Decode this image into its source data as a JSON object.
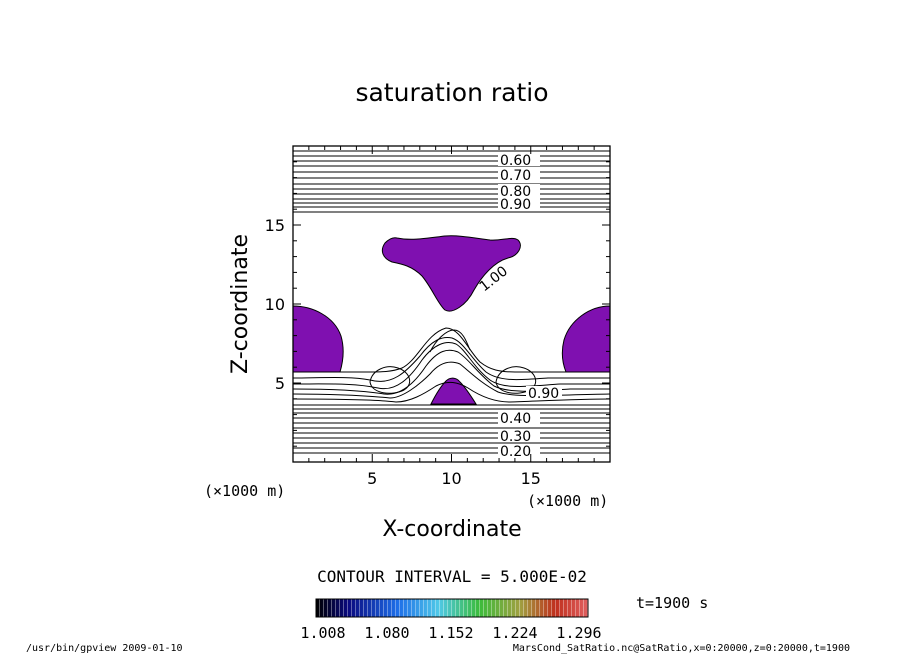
{
  "chart_data": {
    "type": "contour",
    "title": "saturation ratio",
    "xlabel": "X-coordinate",
    "ylabel": "Z-coordinate",
    "x_unit": "(×1000 m)",
    "y_unit": "(×1000 m)",
    "xlim": [
      0,
      20
    ],
    "ylim": [
      0,
      20
    ],
    "x_ticks": [
      "5",
      "10",
      "15"
    ],
    "y_ticks": [
      "5",
      "10",
      "15"
    ],
    "contour_interval_text": "CONTOUR INTERVAL = 5.000E-02",
    "time_label": "t=1900 s",
    "contour_labels_top": [
      "0.60",
      "0.70",
      "0.80",
      "0.90"
    ],
    "contour_labels_bottom": [
      "0.40",
      "0.30",
      "0.20"
    ],
    "contour_label_center": "1.00",
    "contour_label_right": "0.90",
    "colorbar_tick_labels": [
      "1.008",
      "1.080",
      "1.152",
      "1.224",
      "1.296"
    ],
    "supersaturated_fill_color": "#7f10b0",
    "footer_left": "/usr/bin/gpview   2009-01-10",
    "footer_right": "MarsCond_SatRatio.nc@SatRatio,x=0:20000,z=0:20000,t=1900"
  }
}
